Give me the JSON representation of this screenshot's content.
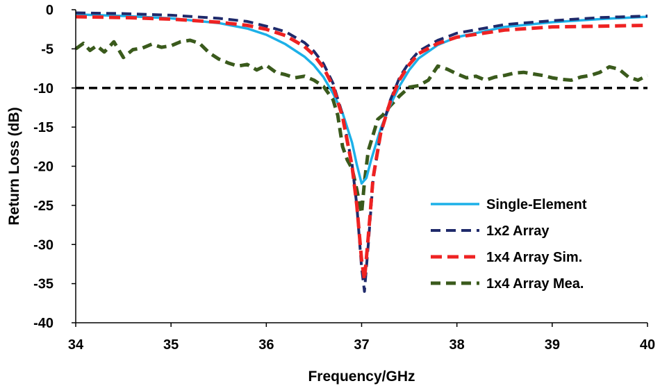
{
  "chart_data": {
    "type": "line",
    "title": "",
    "xlabel": "Frequency/GHz",
    "ylabel": "Return Loss (dB)",
    "xlim": [
      34,
      40
    ],
    "ylim": [
      -40,
      0
    ],
    "xticks": [
      "34",
      "35",
      "36",
      "37",
      "38",
      "39",
      "40"
    ],
    "yticks": [
      "0",
      "-5",
      "-10",
      "-15",
      "-20",
      "-25",
      "-30",
      "-35",
      "-40"
    ],
    "reference_line": {
      "y": -10,
      "color": "#000000",
      "style": "dashed"
    },
    "legend_position": "bottom-right",
    "series": [
      {
        "name": "Single-Element",
        "color": "#1cb0e8",
        "style": "solid",
        "points": [
          [
            34,
            -0.6
          ],
          [
            34.5,
            -0.8
          ],
          [
            35,
            -1.1
          ],
          [
            35.5,
            -1.7
          ],
          [
            35.8,
            -2.4
          ],
          [
            36,
            -3.2
          ],
          [
            36.2,
            -4.4
          ],
          [
            36.4,
            -6.0
          ],
          [
            36.5,
            -7.1
          ],
          [
            36.6,
            -8.6
          ],
          [
            36.7,
            -10.7
          ],
          [
            36.8,
            -13.2
          ],
          [
            36.9,
            -17
          ],
          [
            36.95,
            -19.8
          ],
          [
            37.0,
            -22.2
          ],
          [
            37.05,
            -21.5
          ],
          [
            37.1,
            -19.2
          ],
          [
            37.2,
            -15.2
          ],
          [
            37.3,
            -12.2
          ],
          [
            37.4,
            -9.7
          ],
          [
            37.5,
            -7.7
          ],
          [
            37.6,
            -6.2
          ],
          [
            37.8,
            -4.5
          ],
          [
            38,
            -3.5
          ],
          [
            38.5,
            -2.2
          ],
          [
            39,
            -1.6
          ],
          [
            39.5,
            -1.2
          ],
          [
            40,
            -0.9
          ]
        ]
      },
      {
        "name": "1x2 Array",
        "color": "#1f2a6b",
        "style": "dashed",
        "points": [
          [
            34,
            -0.4
          ],
          [
            34.5,
            -0.5
          ],
          [
            35,
            -0.7
          ],
          [
            35.5,
            -1.1
          ],
          [
            35.8,
            -1.5
          ],
          [
            36,
            -2.1
          ],
          [
            36.2,
            -2.8
          ],
          [
            36.4,
            -4.2
          ],
          [
            36.5,
            -5.3
          ],
          [
            36.6,
            -6.9
          ],
          [
            36.7,
            -9.4
          ],
          [
            36.8,
            -13.4
          ],
          [
            36.9,
            -19.8
          ],
          [
            36.95,
            -25
          ],
          [
            37.0,
            -33
          ],
          [
            37.03,
            -36
          ],
          [
            37.07,
            -30
          ],
          [
            37.12,
            -21.8
          ],
          [
            37.2,
            -15.8
          ],
          [
            37.3,
            -11.6
          ],
          [
            37.4,
            -8.6
          ],
          [
            37.5,
            -6.7
          ],
          [
            37.6,
            -5.3
          ],
          [
            37.8,
            -3.9
          ],
          [
            38,
            -3.0
          ],
          [
            38.5,
            -1.9
          ],
          [
            39,
            -1.4
          ],
          [
            39.5,
            -1.0
          ],
          [
            40,
            -0.8
          ]
        ]
      },
      {
        "name": "1x4 Array Sim.",
        "color": "#ee2222",
        "style": "dashed",
        "points": [
          [
            34,
            -0.9
          ],
          [
            34.5,
            -1.0
          ],
          [
            35,
            -1.2
          ],
          [
            35.5,
            -1.6
          ],
          [
            35.8,
            -2.0
          ],
          [
            36,
            -2.5
          ],
          [
            36.2,
            -3.3
          ],
          [
            36.4,
            -4.7
          ],
          [
            36.5,
            -5.8
          ],
          [
            36.6,
            -7.4
          ],
          [
            36.7,
            -9.8
          ],
          [
            36.8,
            -13.7
          ],
          [
            36.9,
            -20
          ],
          [
            36.95,
            -25
          ],
          [
            37.0,
            -32
          ],
          [
            37.03,
            -34.5
          ],
          [
            37.07,
            -29
          ],
          [
            37.12,
            -21.5
          ],
          [
            37.2,
            -15.8
          ],
          [
            37.3,
            -11.8
          ],
          [
            37.4,
            -8.9
          ],
          [
            37.5,
            -7.0
          ],
          [
            37.6,
            -5.6
          ],
          [
            37.8,
            -4.3
          ],
          [
            38,
            -3.5
          ],
          [
            38.5,
            -2.6
          ],
          [
            39,
            -2.2
          ],
          [
            39.5,
            -2.1
          ],
          [
            40,
            -2.0
          ]
        ]
      },
      {
        "name": "1x4 Array Mea.",
        "color": "#3a5a1c",
        "style": "dashed",
        "points": [
          [
            34,
            -5.0
          ],
          [
            34.08,
            -4.3
          ],
          [
            34.15,
            -5.2
          ],
          [
            34.22,
            -4.6
          ],
          [
            34.3,
            -5.4
          ],
          [
            34.4,
            -4.1
          ],
          [
            34.5,
            -6.1
          ],
          [
            34.6,
            -5.1
          ],
          [
            34.7,
            -4.9
          ],
          [
            34.8,
            -4.4
          ],
          [
            34.9,
            -4.8
          ],
          [
            35,
            -4.6
          ],
          [
            35.1,
            -4.1
          ],
          [
            35.2,
            -3.9
          ],
          [
            35.3,
            -4.3
          ],
          [
            35.4,
            -5.5
          ],
          [
            35.5,
            -6.3
          ],
          [
            35.6,
            -6.8
          ],
          [
            35.7,
            -7.2
          ],
          [
            35.8,
            -7.0
          ],
          [
            35.9,
            -7.7
          ],
          [
            36,
            -7.1
          ],
          [
            36.1,
            -8.0
          ],
          [
            36.2,
            -8.3
          ],
          [
            36.3,
            -8.7
          ],
          [
            36.4,
            -8.5
          ],
          [
            36.5,
            -9.0
          ],
          [
            36.6,
            -9.8
          ],
          [
            36.7,
            -11.5
          ],
          [
            36.75,
            -13.5
          ],
          [
            36.8,
            -17.5
          ],
          [
            36.85,
            -19.2
          ],
          [
            36.9,
            -20.3
          ],
          [
            36.95,
            -23.0
          ],
          [
            37.0,
            -26.0
          ],
          [
            37.03,
            -22.0
          ],
          [
            37.07,
            -18.0
          ],
          [
            37.12,
            -16.0
          ],
          [
            37.17,
            -14.0
          ],
          [
            37.22,
            -13.5
          ],
          [
            37.3,
            -12.3
          ],
          [
            37.4,
            -11.0
          ],
          [
            37.5,
            -9.9
          ],
          [
            37.6,
            -9.7
          ],
          [
            37.7,
            -9.0
          ],
          [
            37.8,
            -7.2
          ],
          [
            37.9,
            -7.6
          ],
          [
            38,
            -8.2
          ],
          [
            38.1,
            -8.7
          ],
          [
            38.2,
            -8.5
          ],
          [
            38.3,
            -9.0
          ],
          [
            38.4,
            -8.6
          ],
          [
            38.5,
            -8.4
          ],
          [
            38.6,
            -8.1
          ],
          [
            38.7,
            -8.0
          ],
          [
            38.8,
            -8.2
          ],
          [
            38.9,
            -8.4
          ],
          [
            39,
            -8.7
          ],
          [
            39.1,
            -8.9
          ],
          [
            39.2,
            -9.0
          ],
          [
            39.3,
            -8.6
          ],
          [
            39.4,
            -8.4
          ],
          [
            39.5,
            -8.0
          ],
          [
            39.6,
            -7.3
          ],
          [
            39.7,
            -7.6
          ],
          [
            39.8,
            -8.6
          ],
          [
            39.9,
            -9.0
          ],
          [
            40,
            -8.4
          ]
        ]
      }
    ]
  }
}
